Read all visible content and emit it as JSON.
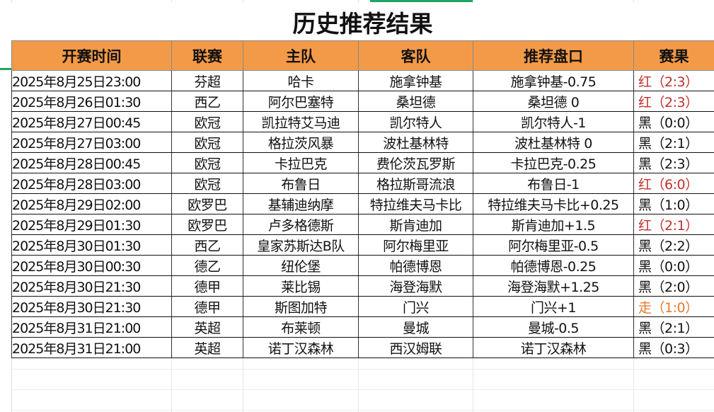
{
  "title": "历史推荐结果",
  "colors": {
    "header_bg": "#f39a48",
    "red": "#c0302b",
    "orange": "#e8792a",
    "black": "#111111"
  },
  "columns": [
    "开赛时间",
    "联赛",
    "主队",
    "客队",
    "推荐盘口",
    "赛果"
  ],
  "rows": [
    {
      "time": "2025年8月25日23:00",
      "league": "芬超",
      "home": "哈卡",
      "away": "施拿钟基",
      "pick": "施拿钟基-0.75",
      "result": "红（2:3）",
      "result_color": "red"
    },
    {
      "time": "2025年8月26日01:30",
      "league": "西乙",
      "home": "阿尔巴塞特",
      "away": "桑坦德",
      "pick": "桑坦德 0",
      "result": "红（2:3）",
      "result_color": "red"
    },
    {
      "time": "2025年8月27日00:45",
      "league": "欧冠",
      "home": "凯拉特艾马迪",
      "away": "凯尔特人",
      "pick": "凯尔特人-1",
      "result": "黑（0:0）",
      "result_color": "black"
    },
    {
      "time": "2025年8月27日03:00",
      "league": "欧冠",
      "home": "格拉茨风暴",
      "away": "波杜基林特",
      "pick": "波杜基林特 0",
      "result": "黑（2:1）",
      "result_color": "black"
    },
    {
      "time": "2025年8月28日00:45",
      "league": "欧冠",
      "home": "卡拉巴克",
      "away": "费伦茨瓦罗斯",
      "pick": "卡拉巴克-0.25",
      "result": "黑（2:3）",
      "result_color": "black"
    },
    {
      "time": "2025年8月28日03:00",
      "league": "欧冠",
      "home": "布鲁日",
      "away": "格拉斯哥流浪",
      "pick": "布鲁日-1",
      "result": "红（6:0）",
      "result_color": "red"
    },
    {
      "time": "2025年8月29日02:00",
      "league": "欧罗巴",
      "home": "基辅迪纳摩",
      "away": "特拉维夫马卡比",
      "pick": "特拉维夫马卡比+0.25",
      "result": "黑（1:0）",
      "result_color": "black"
    },
    {
      "time": "2025年8月29日01:30",
      "league": "欧罗巴",
      "home": "卢多格德斯",
      "away": "斯肯迪加",
      "pick": "斯肯迪加+1.5",
      "result": "红（2:1）",
      "result_color": "red"
    },
    {
      "time": "2025年8月30日01:30",
      "league": "西乙",
      "home": "皇家苏斯达B队",
      "away": "阿尔梅里亚",
      "pick": "阿尔梅里亚-0.5",
      "result": "黑（2:2）",
      "result_color": "black"
    },
    {
      "time": "2025年8月30日00:30",
      "league": "德乙",
      "home": "纽伦堡",
      "away": "帕德博恩",
      "pick": "帕德博恩-0.25",
      "result": "黑（0:0）",
      "result_color": "black"
    },
    {
      "time": "2025年8月30日21:30",
      "league": "德甲",
      "home": "莱比锡",
      "away": "海登海默",
      "pick": "海登海默+1.25",
      "result": "黑（2:0）",
      "result_color": "black"
    },
    {
      "time": "2025年8月30日21:30",
      "league": "德甲",
      "home": "斯图加特",
      "away": "门兴",
      "pick": "门兴+1",
      "result": "走（1:0）",
      "result_color": "orange"
    },
    {
      "time": "2025年8月31日21:00",
      "league": "英超",
      "home": "布莱顿",
      "away": "曼城",
      "pick": "曼城-0.5",
      "result": "黑（2:1）",
      "result_color": "black"
    },
    {
      "time": "2025年8月31日21:00",
      "league": "英超",
      "home": "诺丁汉森林",
      "away": "西汉姆联",
      "pick": "诺丁汉森林",
      "result": "黑（0:3）",
      "result_color": "black"
    }
  ]
}
